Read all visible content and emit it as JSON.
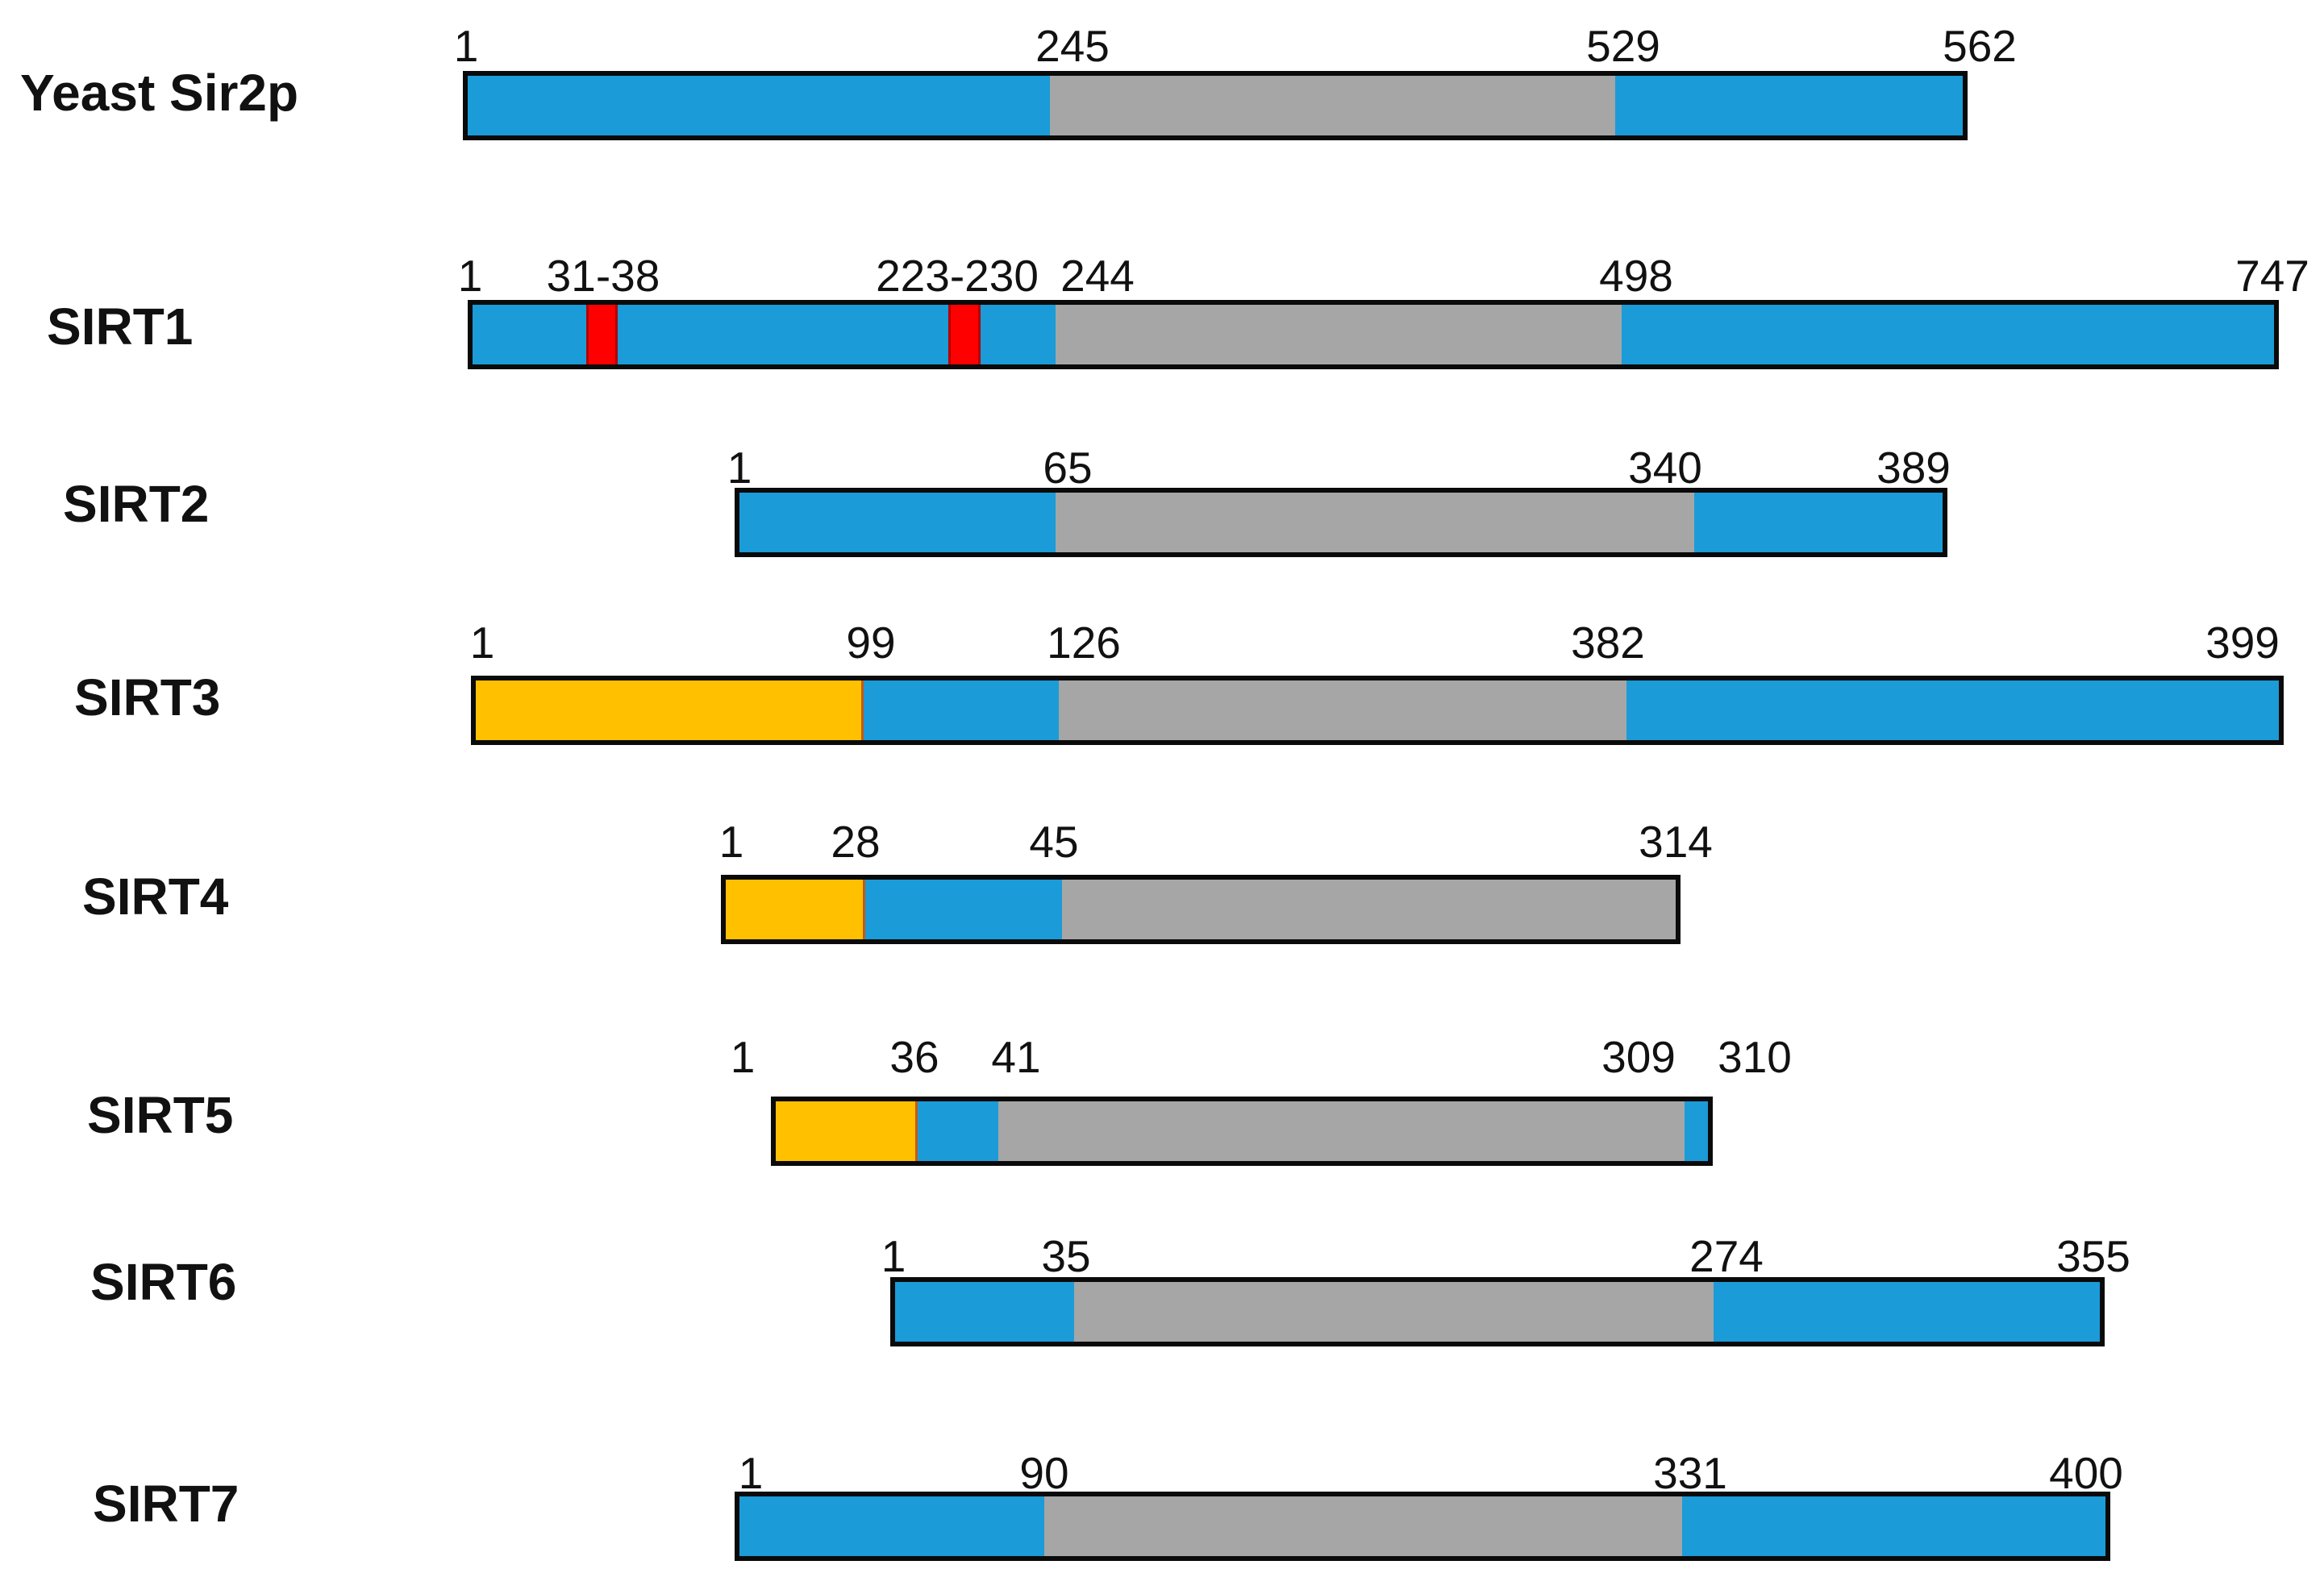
{
  "colors": {
    "blue": "#1B9BD8",
    "gray": "#A6A6A6",
    "yellow": "#FFC000",
    "red": "#FF0000",
    "outline": "#0A0A0A"
  },
  "proteins": [
    {
      "name": "Yeast Sir2p",
      "segments": [
        {
          "kind": "blue",
          "start": 1,
          "end": 245
        },
        {
          "kind": "gray",
          "start": 245,
          "end": 529
        },
        {
          "kind": "blue",
          "start": 529,
          "end": 562
        }
      ],
      "labels": [
        "1",
        "245",
        "529",
        "562"
      ]
    },
    {
      "name": "SIRT1",
      "segments": [
        {
          "kind": "blue",
          "start": 1,
          "end": 244
        },
        {
          "kind": "red",
          "start": 31,
          "end": 38
        },
        {
          "kind": "red",
          "start": 223,
          "end": 230
        },
        {
          "kind": "gray",
          "start": 244,
          "end": 498
        },
        {
          "kind": "blue",
          "start": 498,
          "end": 747
        }
      ],
      "labels": [
        "1",
        "31-38",
        "223-230",
        "244",
        "498",
        "747"
      ]
    },
    {
      "name": "SIRT2",
      "segments": [
        {
          "kind": "blue",
          "start": 1,
          "end": 65
        },
        {
          "kind": "gray",
          "start": 65,
          "end": 340
        },
        {
          "kind": "blue",
          "start": 340,
          "end": 389
        }
      ],
      "labels": [
        "1",
        "65",
        "340",
        "389"
      ]
    },
    {
      "name": "SIRT3",
      "segments": [
        {
          "kind": "yellow",
          "start": 1,
          "end": 99
        },
        {
          "kind": "blue",
          "start": 99,
          "end": 126
        },
        {
          "kind": "gray",
          "start": 126,
          "end": 382
        },
        {
          "kind": "blue",
          "start": 382,
          "end": 399
        }
      ],
      "labels": [
        "1",
        "99",
        "126",
        "382",
        "399"
      ]
    },
    {
      "name": "SIRT4",
      "segments": [
        {
          "kind": "yellow",
          "start": 1,
          "end": 28
        },
        {
          "kind": "blue",
          "start": 28,
          "end": 45
        },
        {
          "kind": "gray",
          "start": 45,
          "end": 314
        }
      ],
      "labels": [
        "1",
        "28",
        "45",
        "314"
      ]
    },
    {
      "name": "SIRT5",
      "segments": [
        {
          "kind": "yellow",
          "start": 1,
          "end": 36
        },
        {
          "kind": "blue",
          "start": 36,
          "end": 41
        },
        {
          "kind": "gray",
          "start": 41,
          "end": 309
        },
        {
          "kind": "blue",
          "start": 309,
          "end": 310
        }
      ],
      "labels": [
        "1",
        "36",
        "41",
        "309",
        "310"
      ]
    },
    {
      "name": "SIRT6",
      "segments": [
        {
          "kind": "blue",
          "start": 1,
          "end": 35
        },
        {
          "kind": "gray",
          "start": 35,
          "end": 274
        },
        {
          "kind": "blue",
          "start": 274,
          "end": 355
        }
      ],
      "labels": [
        "1",
        "35",
        "274",
        "355"
      ]
    },
    {
      "name": "SIRT7",
      "segments": [
        {
          "kind": "blue",
          "start": 1,
          "end": 90
        },
        {
          "kind": "gray",
          "start": 90,
          "end": 331
        },
        {
          "kind": "blue",
          "start": 331,
          "end": 400
        }
      ],
      "labels": [
        "1",
        "90",
        "331",
        "400"
      ]
    }
  ]
}
